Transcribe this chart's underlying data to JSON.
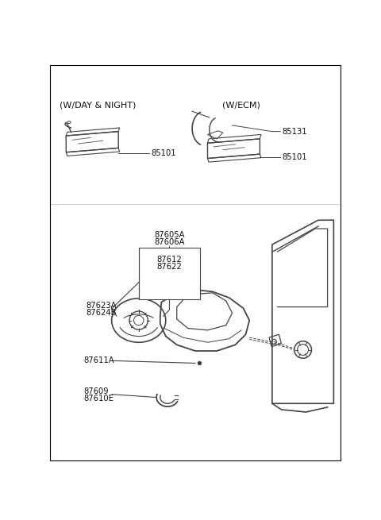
{
  "background_color": "#ffffff",
  "border_color": "#000000",
  "text_color": "#111111",
  "line_color": "#444444",
  "label_fontsize": 7.2,
  "header_fontsize": 8.0,
  "labels": {
    "w_day_night": "(W/DAY & NIGHT)",
    "w_ecm": "(W/ECM)",
    "p85101_left": "85101",
    "p85131": "85131",
    "p85101_right": "85101",
    "p87605A": "87605A",
    "p87606A": "87606A",
    "p87612": "87612",
    "p87622": "87622",
    "p87623A": "87623A",
    "p87624B": "87624B",
    "p87611A": "87611A",
    "p87609": "87609",
    "p87610E": "87610E"
  }
}
